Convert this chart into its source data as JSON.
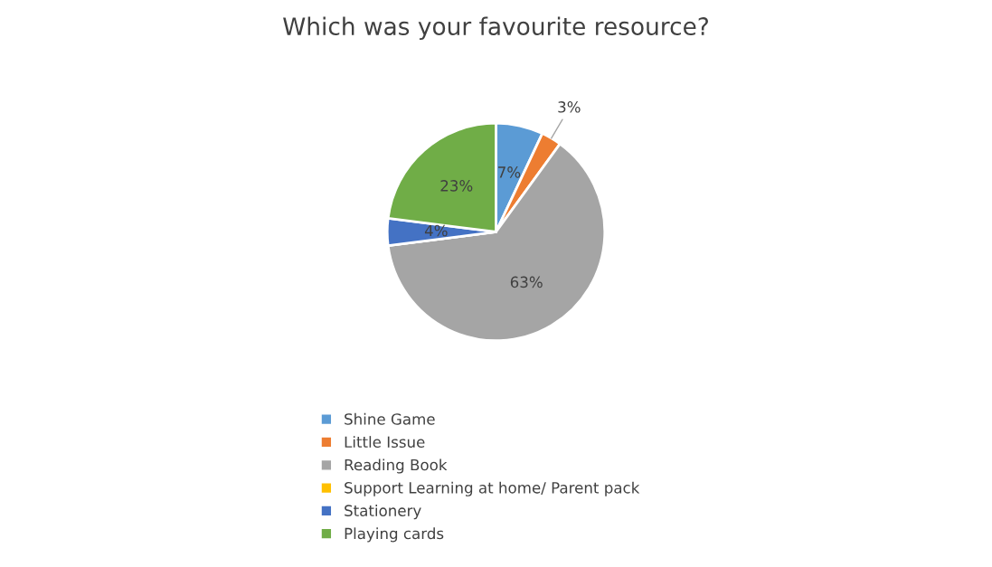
{
  "chart_data": {
    "type": "pie",
    "title": "Which was your favourite resource?",
    "categories": [
      "Shine Game",
      "Little Issue",
      "Reading Book",
      "Support Learning at home/ Parent pack",
      "Stationery",
      "Playing cards"
    ],
    "values": [
      7,
      3,
      63,
      0,
      4,
      23
    ],
    "colors": [
      "#5b9bd5",
      "#ed7d31",
      "#a5a5a5",
      "#ffc000",
      "#4472c4",
      "#70ad47"
    ],
    "value_labels": [
      "7%",
      "3%",
      "63%",
      null,
      "4%",
      "23%"
    ],
    "legend": "bottom"
  }
}
